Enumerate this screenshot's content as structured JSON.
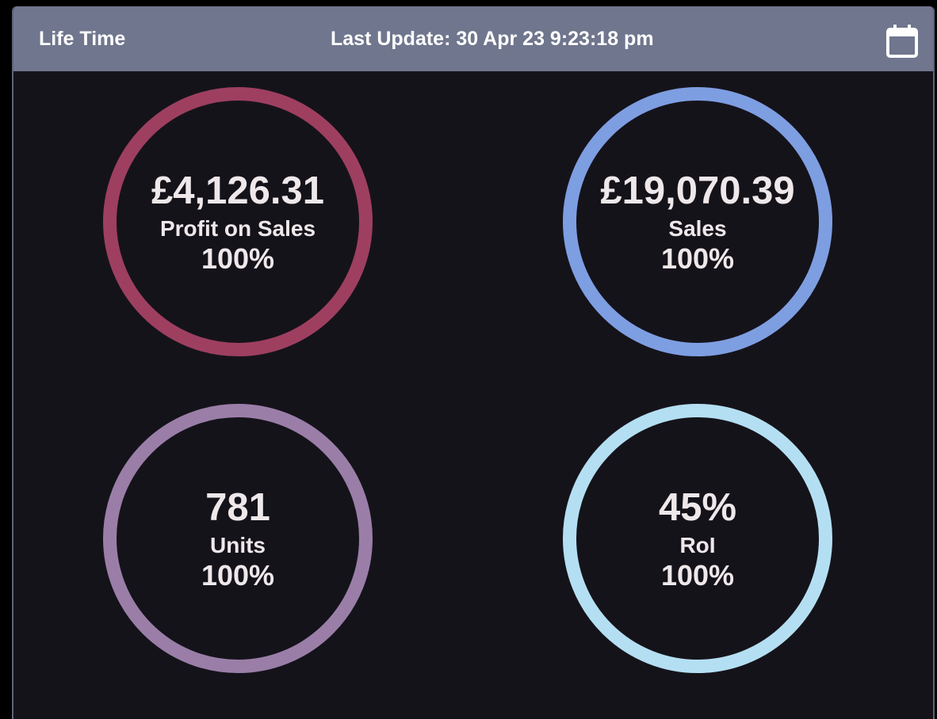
{
  "header": {
    "title": "Life Time",
    "last_update": "Last Update: 30 Apr 23 9:23:18 pm",
    "calendar_icon": "calendar-icon"
  },
  "metrics": [
    {
      "value": "£4,126.31",
      "label": "Profit on Sales",
      "percent": "100%",
      "ring_color": "#9e3f60"
    },
    {
      "value": "£19,070.39",
      "label": "Sales",
      "percent": "100%",
      "ring_color": "#7e9ee2"
    },
    {
      "value": "781",
      "label": "Units",
      "percent": "100%",
      "ring_color": "#9a7ea8"
    },
    {
      "value": "45%",
      "label": "RoI",
      "percent": "100%",
      "ring_color": "#b4dff2"
    }
  ]
}
